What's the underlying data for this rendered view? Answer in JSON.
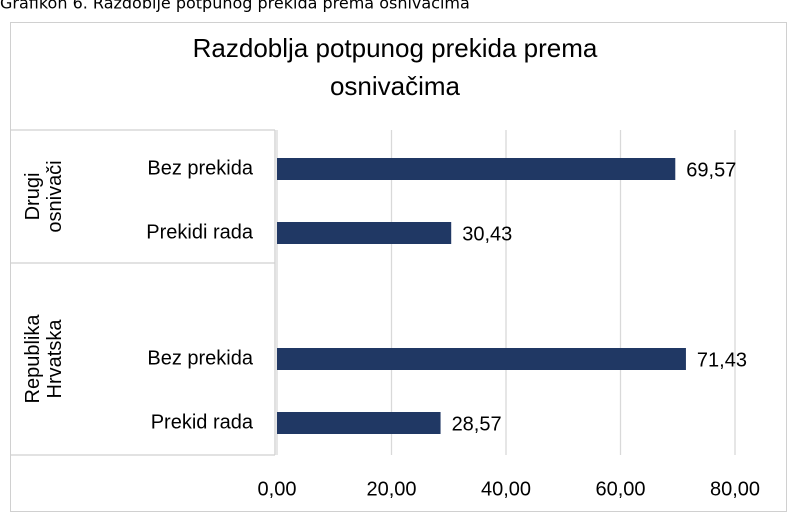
{
  "caption": "Grafikon 6. Razdoblje potpunog prekida prema osnivačima",
  "chart_data": {
    "type": "bar",
    "orientation": "horizontal",
    "title": [
      "Razdoblja potpunog prekida prema",
      "osnivačima"
    ],
    "color": "#203864",
    "groups": [
      {
        "label": [
          "Drugi",
          "osnivači"
        ],
        "categories": [
          "Bez prekida",
          "Prekidi rada"
        ],
        "values": [
          69.57,
          30.43
        ],
        "value_labels": [
          "69,57",
          "30,43"
        ]
      },
      {
        "label": [
          "Republika",
          "Hrvatska"
        ],
        "categories": [
          "Bez prekida",
          "Prekid rada"
        ],
        "values": [
          71.43,
          28.57
        ],
        "value_labels": [
          "71,43",
          "28,57"
        ]
      }
    ],
    "xlim": [
      0,
      80
    ],
    "xticks": [
      {
        "value": 0,
        "label": "0,00"
      },
      {
        "value": 20,
        "label": "20,00"
      },
      {
        "value": 40,
        "label": "40,00"
      },
      {
        "value": 60,
        "label": "60,00"
      },
      {
        "value": 80,
        "label": "80,00"
      }
    ],
    "grid": true
  }
}
